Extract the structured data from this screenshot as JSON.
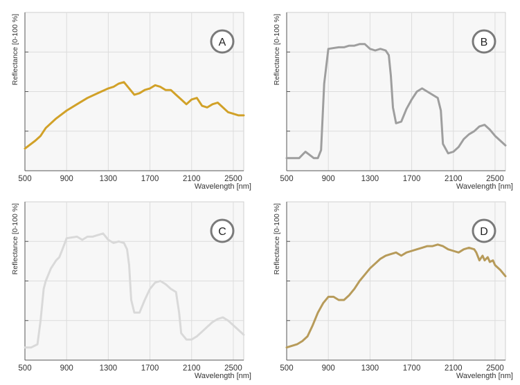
{
  "chart_data": [
    {
      "type": "line",
      "badge": "A",
      "xlabel": "Wavelength [nm]",
      "ylabel": "Reflectance [0-100 %]",
      "xlim": [
        500,
        2600
      ],
      "ylim": [
        0,
        100
      ],
      "xticks": [
        "500",
        "900",
        "1300",
        "1700",
        "2100",
        "2500"
      ],
      "grid": true,
      "color": "#d1a128",
      "series": [
        {
          "x": [
            500,
            600,
            650,
            700,
            800,
            900,
            1000,
            1100,
            1200,
            1300,
            1350,
            1400,
            1450,
            1500,
            1550,
            1600,
            1650,
            1700,
            1750,
            1800,
            1850,
            1900,
            1950,
            2000,
            2050,
            2100,
            2150,
            2200,
            2250,
            2300,
            2350,
            2400,
            2450,
            2500,
            2550,
            2600
          ],
          "y": [
            14,
            19,
            22,
            27,
            33,
            38,
            42,
            46,
            49,
            52,
            53,
            55,
            56,
            52,
            48,
            49,
            51,
            52,
            54,
            53,
            51,
            51,
            48,
            45,
            42,
            45,
            46,
            41,
            40,
            42,
            43,
            40,
            37,
            36,
            35,
            35
          ]
        }
      ]
    },
    {
      "type": "line",
      "badge": "B",
      "xlabel": "Wavelength [nm]",
      "ylabel": "Reflectance [0-100 %]",
      "xlim": [
        500,
        2600
      ],
      "ylim": [
        0,
        100
      ],
      "xticks": [
        "500",
        "900",
        "1300",
        "1700",
        "2100",
        "2500"
      ],
      "grid": true,
      "color": "#9e9e9e",
      "series": [
        {
          "x": [
            500,
            580,
            620,
            650,
            680,
            720,
            760,
            800,
            830,
            860,
            900,
            1000,
            1050,
            1100,
            1150,
            1200,
            1250,
            1300,
            1350,
            1400,
            1450,
            1480,
            1500,
            1520,
            1550,
            1600,
            1650,
            1700,
            1750,
            1800,
            1850,
            1900,
            1950,
            1980,
            2000,
            2050,
            2100,
            2150,
            2200,
            2250,
            2300,
            2350,
            2400,
            2450,
            2500,
            2550,
            2600
          ],
          "y": [
            8,
            8,
            8,
            10,
            12,
            10,
            8,
            8,
            13,
            55,
            77,
            78,
            78,
            79,
            79,
            80,
            80,
            77,
            76,
            77,
            76,
            73,
            60,
            40,
            30,
            31,
            39,
            45,
            50,
            52,
            50,
            48,
            46,
            38,
            17,
            11,
            12,
            15,
            20,
            23,
            25,
            28,
            29,
            26,
            22,
            19,
            16
          ]
        }
      ]
    },
    {
      "type": "line",
      "badge": "C",
      "xlabel": "Wavelength [nm]",
      "ylabel": "Reflectance [0-100 %]",
      "xlim": [
        500,
        2600
      ],
      "ylim": [
        0,
        100
      ],
      "xticks": [
        "500",
        "900",
        "1300",
        "1700",
        "2100",
        "2500"
      ],
      "grid": true,
      "color": "#d9d9d9",
      "series": [
        {
          "x": [
            500,
            560,
            620,
            650,
            680,
            700,
            750,
            800,
            830,
            860,
            900,
            1000,
            1050,
            1100,
            1150,
            1200,
            1250,
            1300,
            1350,
            1400,
            1450,
            1480,
            1500,
            1520,
            1550,
            1600,
            1650,
            1700,
            1750,
            1800,
            1850,
            1900,
            1950,
            1980,
            2000,
            2050,
            2100,
            2150,
            2200,
            2250,
            2300,
            2350,
            2400,
            2450,
            2500,
            2550,
            2600
          ],
          "y": [
            8,
            8,
            10,
            25,
            45,
            50,
            58,
            63,
            65,
            70,
            77,
            78,
            76,
            78,
            78,
            79,
            80,
            76,
            74,
            75,
            74,
            70,
            60,
            38,
            30,
            30,
            38,
            45,
            49,
            50,
            48,
            45,
            43,
            30,
            17,
            13,
            13,
            15,
            18,
            21,
            24,
            26,
            27,
            25,
            22,
            19,
            16
          ]
        }
      ]
    },
    {
      "type": "line",
      "badge": "D",
      "xlabel": "Wavelength [nm]",
      "ylabel": "Reflectance [0-100 %]",
      "xlim": [
        500,
        2600
      ],
      "ylim": [
        0,
        100
      ],
      "xticks": [
        "500",
        "900",
        "1300",
        "1700",
        "2100",
        "2500"
      ],
      "grid": true,
      "color": "#b79b5a",
      "series": [
        {
          "x": [
            500,
            600,
            650,
            700,
            750,
            800,
            850,
            900,
            950,
            1000,
            1050,
            1100,
            1150,
            1200,
            1250,
            1300,
            1350,
            1400,
            1450,
            1500,
            1550,
            1600,
            1650,
            1700,
            1750,
            1800,
            1850,
            1900,
            1950,
            2000,
            2050,
            2100,
            2150,
            2200,
            2250,
            2300,
            2320,
            2350,
            2380,
            2400,
            2430,
            2450,
            2480,
            2500,
            2550,
            2600
          ],
          "y": [
            8,
            10,
            12,
            15,
            22,
            30,
            36,
            40,
            40,
            38,
            38,
            41,
            45,
            50,
            54,
            58,
            61,
            64,
            66,
            67,
            68,
            66,
            68,
            69,
            70,
            71,
            72,
            72,
            73,
            72,
            70,
            69,
            68,
            70,
            71,
            70,
            68,
            63,
            66,
            63,
            65,
            62,
            63,
            60,
            57,
            53
          ]
        }
      ]
    }
  ]
}
